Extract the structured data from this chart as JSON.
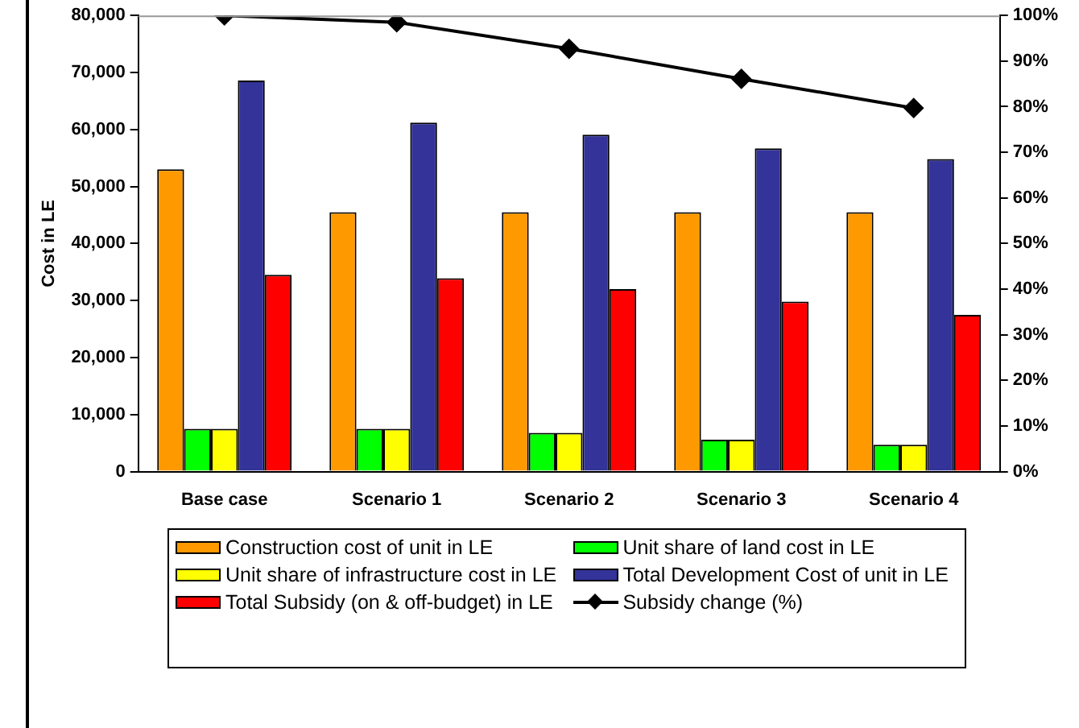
{
  "chart_data": {
    "type": "bar",
    "ylabel": "Cost in LE",
    "categories": [
      "Base case",
      "Scenario 1",
      "Scenario 2",
      "Scenario 3",
      "Scenario 4"
    ],
    "series": [
      {
        "name": "Construction cost of unit in LE",
        "color": "#ff9900",
        "values": [
          53000,
          45500,
          45500,
          45500,
          45500
        ]
      },
      {
        "name": "Unit share of land cost in LE",
        "color": "#00ff00",
        "values": [
          7500,
          7500,
          6800,
          5600,
          4700
        ]
      },
      {
        "name": "Unit share of infrastructure cost in LE",
        "color": "#ffff00",
        "values": [
          7500,
          7500,
          6800,
          5600,
          4700
        ]
      },
      {
        "name": "Total Development Cost of unit in LE",
        "color": "#333399",
        "values": [
          68600,
          61200,
          59100,
          56700,
          54800
        ]
      },
      {
        "name": "Total Subsidy (on & off-budget) in LE",
        "color": "#ff0000",
        "values": [
          34500,
          33900,
          32000,
          29800,
          27500
        ]
      },
      {
        "name": "Subsidy change (%)",
        "type": "line",
        "axis": "y2",
        "color": "#000000",
        "marker": "diamond",
        "values": [
          100,
          98.5,
          92.7,
          86.1,
          79.7
        ]
      }
    ],
    "ylim": [
      0,
      80000
    ],
    "yticks": [
      0,
      {
        "value": 10000,
        "label": "10,000"
      },
      {
        "value": 20000,
        "label": "20,000"
      },
      {
        "value": 30000,
        "label": "30,000"
      },
      {
        "value": 40000,
        "label": "40,000"
      },
      {
        "value": 50000,
        "label": "50,000"
      },
      {
        "value": 60000,
        "label": "60,000"
      },
      {
        "value": 70000,
        "label": "70,000"
      },
      {
        "value": 80000,
        "label": "80,000"
      }
    ],
    "y2lim": [
      0,
      100
    ],
    "y2ticks": [
      {
        "value": 0,
        "label": "0%"
      },
      {
        "value": 10,
        "label": "10%"
      },
      {
        "value": 20,
        "label": "20%"
      },
      {
        "value": 30,
        "label": "30%"
      },
      {
        "value": 40,
        "label": "40%"
      },
      {
        "value": 50,
        "label": "50%"
      },
      {
        "value": 60,
        "label": "60%"
      },
      {
        "value": 70,
        "label": "70%"
      },
      {
        "value": 80,
        "label": "80%"
      },
      {
        "value": 90,
        "label": "90%"
      },
      {
        "value": 100,
        "label": "100%"
      }
    ],
    "grid": false,
    "legend": "bottom"
  }
}
